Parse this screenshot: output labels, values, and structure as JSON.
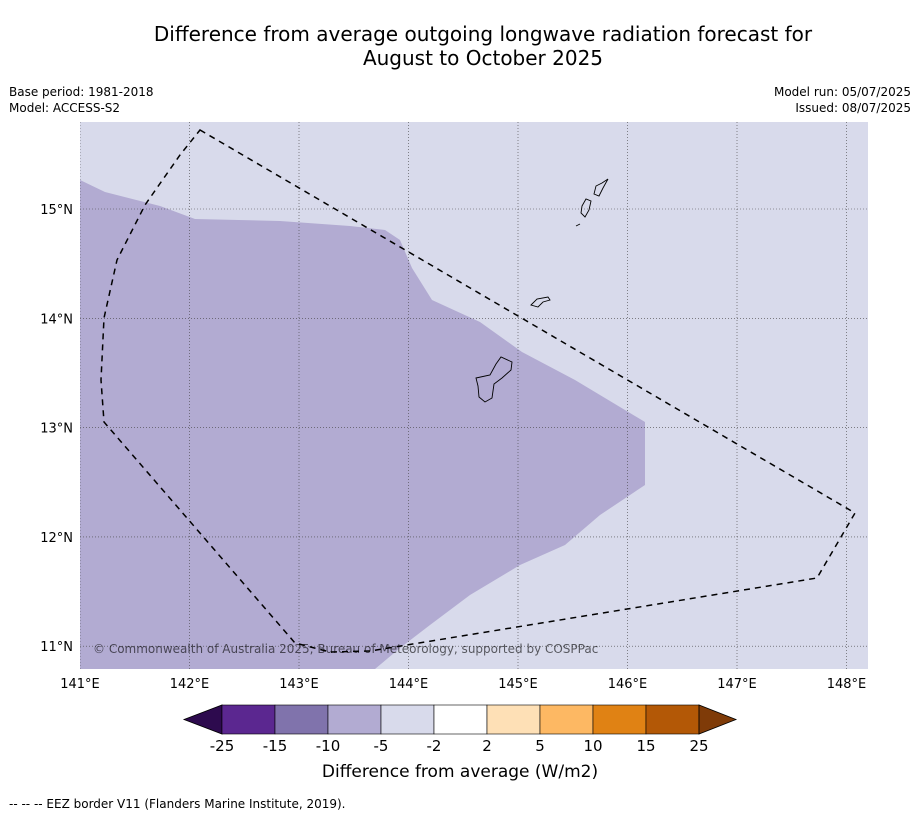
{
  "title_line1": "Difference from average outgoing longwave radiation forecast for",
  "title_line2": "August to October 2025",
  "base_period": "Base period: 1981-2018",
  "model": "Model: ACCESS-S2",
  "model_run": "Model run: 05/07/2025",
  "issued": "Issued: 08/07/2025",
  "copyright": "© Commonwealth of Australia 2025, Bureau of Meteorology, supported by COSPPac",
  "lon_ticks": [
    "141°E",
    "142°E",
    "143°E",
    "144°E",
    "145°E",
    "146°E",
    "147°E",
    "148°E"
  ],
  "lat_ticks": [
    "15°N",
    "14°N",
    "13°N",
    "12°N",
    "11°N"
  ],
  "map_extent": {
    "lon": [
      141.0,
      148.2
    ],
    "lat": [
      10.8,
      15.8
    ]
  },
  "colorbar": {
    "label": "Difference from average (W/m2)",
    "ticks": [
      "-25",
      "-15",
      "-10",
      "-5",
      "-2",
      "2",
      "5",
      "10",
      "15",
      "25"
    ],
    "colors": {
      "below_-25": "#2d0a4e",
      "-25_to_-15": "#5b2790",
      "-15_to_-10": "#8073ac",
      "-10_to_-5": "#b2abd2",
      "-5_to_-2": "#d8daeb",
      "-2_to_2": "#ffffff",
      "2_to_5": "#fee0b6",
      "5_to_10": "#fdb863",
      "10_to_15": "#e08214",
      "15_to_25": "#b35806",
      "above_25": "#7f3b08"
    }
  },
  "legend": {
    "eez_border": "--  --  -- EEZ border V11 (Flanders Marine Institute, 2019)."
  }
}
